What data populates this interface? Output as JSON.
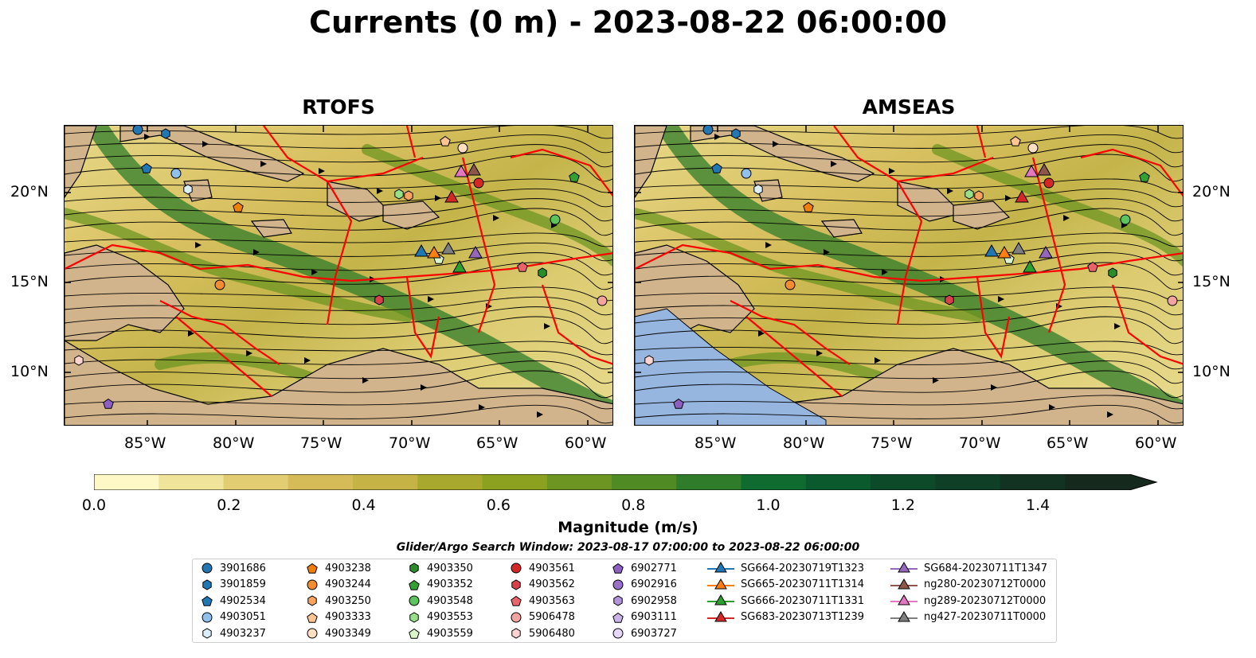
{
  "title": "Currents (0 m) - 2023-08-22 06:00:00",
  "panels": [
    {
      "name": "RTOFS"
    },
    {
      "name": "AMSEAS"
    }
  ],
  "axes": {
    "lon_ticks": [
      "85°W",
      "80°W",
      "75°W",
      "70°W",
      "65°W",
      "60°W"
    ],
    "lat_ticks": [
      "20°N",
      "15°N",
      "10°N"
    ]
  },
  "colorbar": {
    "label": "Magnitude (m/s)",
    "ticks": [
      "0.0",
      "0.2",
      "0.4",
      "0.6",
      "0.8",
      "1.0",
      "1.2",
      "1.4"
    ],
    "colors": [
      "#fdf8c6",
      "#f0e39a",
      "#e2cd72",
      "#d6bc58",
      "#c5b345",
      "#a8a72e",
      "#8ca11f",
      "#6c9522",
      "#4f8a25",
      "#2f7c2a",
      "#0f6b30",
      "#0b5a2e",
      "#0c4a2a",
      "#0f3f26",
      "#133322",
      "#16291d"
    ]
  },
  "search_window": "Glider/Argo Search Window: 2023-08-17 07:00:00 to 2023-08-22 06:00:00",
  "legend": {
    "columns": [
      [
        {
          "label": "3901686",
          "marker": "circle",
          "color": "#1f77b4"
        },
        {
          "label": "3901859",
          "marker": "hexagon",
          "color": "#1f77b4"
        },
        {
          "label": "4902534",
          "marker": "pentagon",
          "color": "#1f77b4"
        },
        {
          "label": "4903051",
          "marker": "circle",
          "color": "#8fc1ec"
        },
        {
          "label": "4903237",
          "marker": "hexagon",
          "color": "#dbeefa"
        }
      ],
      [
        {
          "label": "4903238",
          "marker": "pentagon",
          "color": "#f07f0a"
        },
        {
          "label": "4903244",
          "marker": "circle",
          "color": "#f58c30"
        },
        {
          "label": "4903250",
          "marker": "hexagon",
          "color": "#f7a55e"
        },
        {
          "label": "4903333",
          "marker": "pentagon",
          "color": "#fcc592"
        },
        {
          "label": "4903349",
          "marker": "circle",
          "color": "#fde0c3"
        }
      ],
      [
        {
          "label": "4903350",
          "marker": "hexagon",
          "color": "#2a8c2a"
        },
        {
          "label": "4903352",
          "marker": "pentagon",
          "color": "#34a034"
        },
        {
          "label": "4903548",
          "marker": "circle",
          "color": "#5cc45c"
        },
        {
          "label": "4903553",
          "marker": "hexagon",
          "color": "#98df8a"
        },
        {
          "label": "4903559",
          "marker": "pentagon",
          "color": "#d8f5cc"
        }
      ],
      [
        {
          "label": "4903561",
          "marker": "circle",
          "color": "#d62728"
        },
        {
          "label": "4903562",
          "marker": "hexagon",
          "color": "#d9414a"
        },
        {
          "label": "4903563",
          "marker": "pentagon",
          "color": "#e8636a"
        },
        {
          "label": "5906478",
          "marker": "circle",
          "color": "#f4a4a0"
        },
        {
          "label": "5906480",
          "marker": "hexagon",
          "color": "#fbd3cf"
        }
      ],
      [
        {
          "label": "6902771",
          "marker": "pentagon",
          "color": "#8c5fc0"
        },
        {
          "label": "6902916",
          "marker": "circle",
          "color": "#9b70c8"
        },
        {
          "label": "6902958",
          "marker": "hexagon",
          "color": "#b393d9"
        },
        {
          "label": "6903111",
          "marker": "pentagon",
          "color": "#cab3e8"
        },
        {
          "label": "6903727",
          "marker": "circle",
          "color": "#e6d6f7"
        }
      ],
      [
        {
          "label": "SG664-20230719T1323",
          "marker": "triangle",
          "color": "#1f77b4"
        },
        {
          "label": "SG665-20230711T1314",
          "marker": "triangle",
          "color": "#ff7f0e"
        },
        {
          "label": "SG666-20230711T1331",
          "marker": "triangle",
          "color": "#2ca02c"
        },
        {
          "label": "SG683-20230713T1239",
          "marker": "triangle",
          "color": "#d62728"
        }
      ],
      [
        {
          "label": "SG684-20230711T1347",
          "marker": "triangle",
          "color": "#9467bd"
        },
        {
          "label": "ng280-20230712T0000",
          "marker": "triangle",
          "color": "#8c564b"
        },
        {
          "label": "ng289-20230712T0000",
          "marker": "triangle",
          "color": "#e377c2"
        },
        {
          "label": "ng427-20230711T0000",
          "marker": "triangle",
          "color": "#7f7f7f"
        }
      ]
    ]
  },
  "colors": {
    "land": "#d2b48c",
    "pacific": "#96b6e0",
    "eez_lines": "#ff0000",
    "streamlines": "#000000"
  }
}
